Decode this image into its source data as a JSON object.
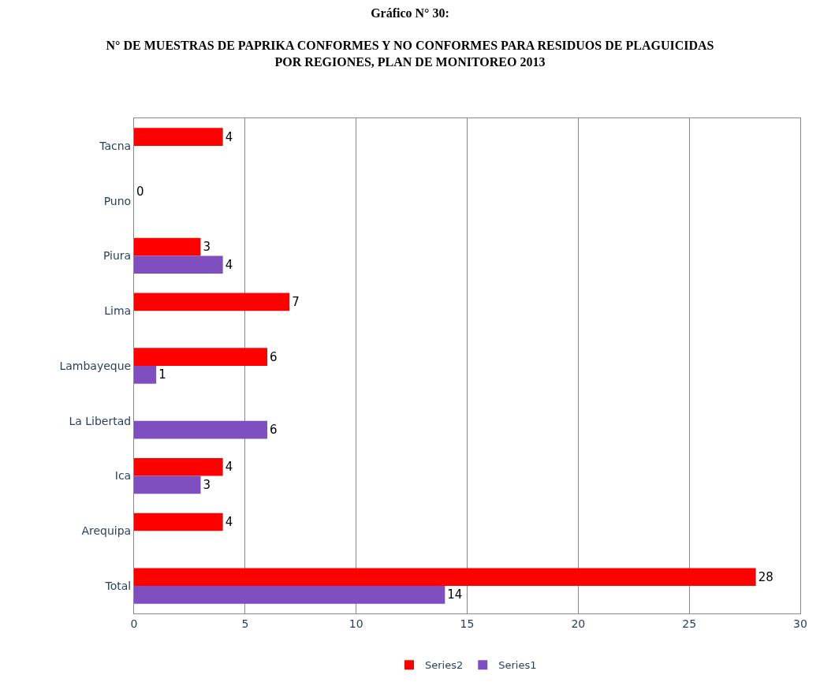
{
  "chart_data": {
    "type": "bar",
    "orientation": "horizontal",
    "title": "Gráfico N° 30:",
    "subtitle": "N° DE MUESTRAS DE PAPRIKA CONFORMES Y NO CONFORMES PARA RESIDUOS DE PLAGUICIDAS POR REGIONES, PLAN DE MONITOREO 2013",
    "categories": [
      "Tacna",
      "Puno",
      "Piura",
      "Lima",
      "Lambayeque",
      "La Libertad",
      "Ica",
      "Arequipa",
      "Total"
    ],
    "series": [
      {
        "name": "Series2",
        "color": "#ff0000",
        "values": [
          4,
          0,
          3,
          7,
          6,
          null,
          4,
          4,
          28
        ]
      },
      {
        "name": "Series1",
        "color": "#7f4fc0",
        "values": [
          null,
          null,
          4,
          null,
          1,
          6,
          3,
          null,
          14
        ]
      }
    ],
    "xlim": [
      0,
      30
    ],
    "xticks": [
      0,
      5,
      10,
      15,
      20,
      25,
      30
    ],
    "grid": "x",
    "legend": "bottom",
    "data_labels": true
  }
}
